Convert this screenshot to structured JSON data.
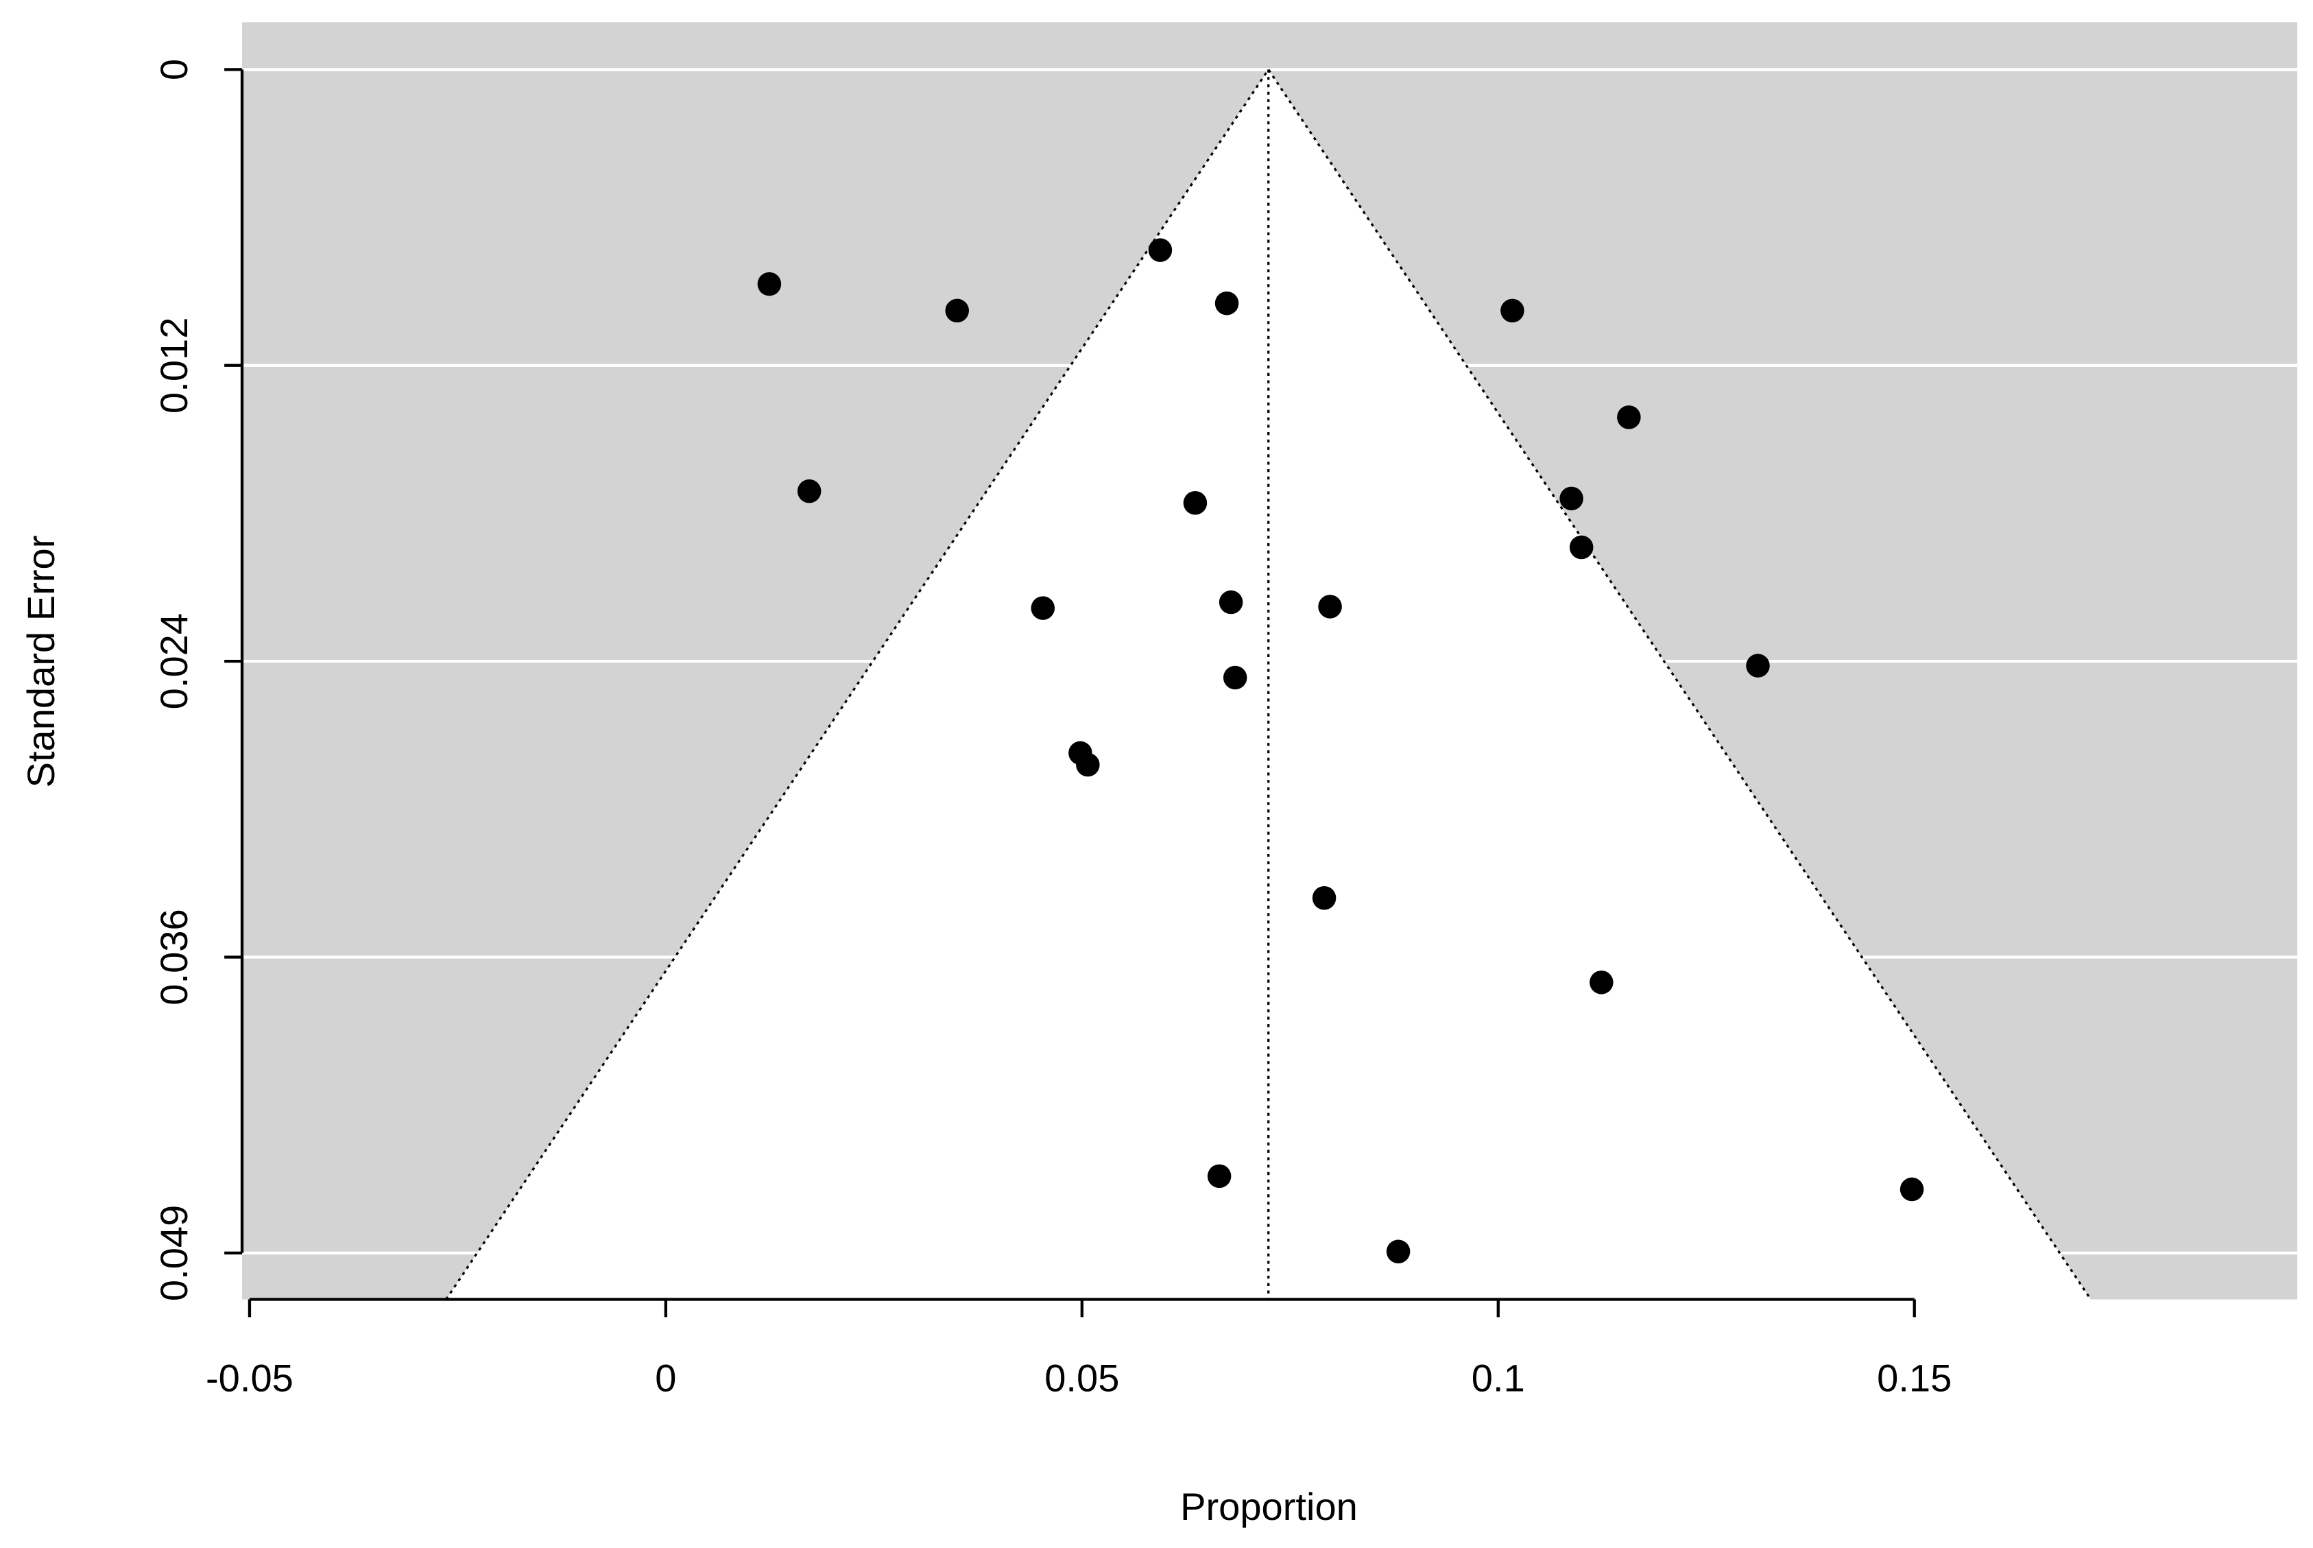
{
  "chart_data": {
    "type": "funnel",
    "xlabel": "Proportion",
    "ylabel": "Standard Error",
    "xlim": [
      -0.0509,
      0.196
    ],
    "ylim": [
      -0.00194,
      0.0504
    ],
    "y_inverted": true,
    "xticks": [
      -0.05,
      0,
      0.05,
      0.1,
      0.15
    ],
    "yticks": [
      0,
      {
        "value": 0.012125,
        "label": "0.012"
      },
      {
        "value": 0.02425,
        "label": "0.024"
      },
      {
        "value": 0.036375,
        "label": "0.036"
      },
      {
        "value": 0.0485,
        "label": "0.049"
      }
    ],
    "estimate": 0.0724,
    "funnel_z": 1.96,
    "grid": true,
    "background": "#d3d3d3",
    "funnel_color": "#ffffff",
    "color": "#000000",
    "x": [
      0.01244,
      0.035,
      0.0594,
      0.0674,
      0.1017,
      0.1157,
      0.01724,
      0.0636,
      0.1088,
      0.11,
      0.0453,
      0.0679,
      0.0798,
      0.1312,
      0.0684,
      0.0498,
      0.0507,
      0.0791,
      0.1124,
      0.0665,
      0.1497,
      0.088
    ],
    "values": [
      0.00879,
      0.00988,
      0.0074,
      0.00958,
      0.00988,
      0.01425,
      0.01728,
      0.01776,
      0.01758,
      0.01958,
      0.02207,
      0.02183,
      0.02201,
      0.02443,
      0.02492,
      0.02801,
      0.02849,
      0.03395,
      0.03741,
      0.04535,
      0.04589,
      0.04844
    ]
  }
}
